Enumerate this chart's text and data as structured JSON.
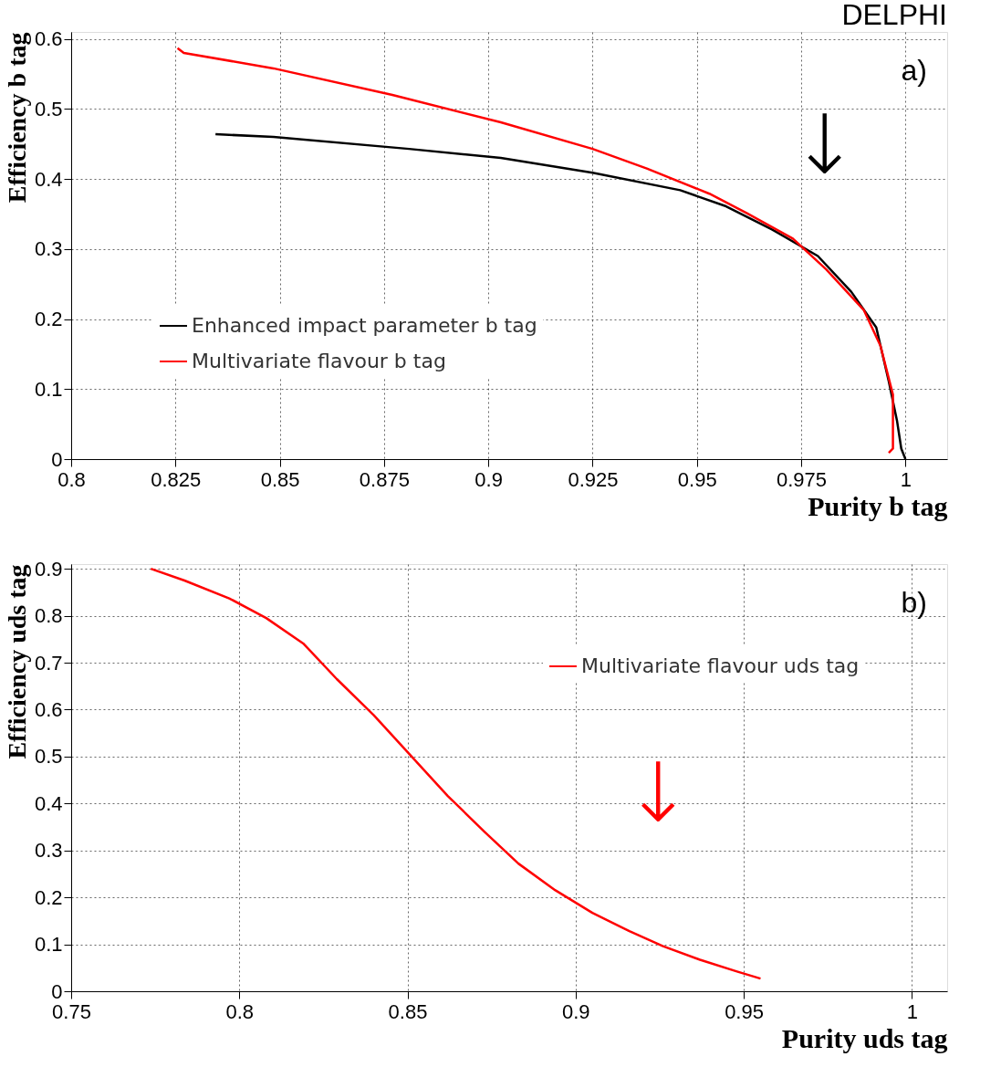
{
  "chart_data": [
    {
      "type": "line",
      "title": "DELPHI",
      "xlabel": "Purity b tag",
      "ylabel": "Efficiency b tag",
      "xlim": [
        0.8,
        1.01
      ],
      "ylim": [
        0,
        0.61
      ],
      "xticks": [
        0.8,
        0.825,
        0.85,
        0.875,
        0.9,
        0.925,
        0.95,
        0.975,
        1
      ],
      "yticks": [
        0,
        0.1,
        0.2,
        0.3,
        0.4,
        0.5,
        0.6
      ],
      "grid": true,
      "legend": "bottom left",
      "line_style": "solid",
      "marker": "none",
      "annotations": [
        "a)",
        "↓"
      ],
      "series": [
        {
          "name": "Enhanced impact parameter b tag",
          "color": "#000000",
          "x": [
            0.8346,
            0.8485,
            0.881,
            0.903,
            0.925,
            0.946,
            0.957,
            0.968,
            0.979,
            0.987,
            0.993,
            0.996,
            0.998,
            0.999,
            1.0
          ],
          "values": [
            0.464,
            0.46,
            0.443,
            0.43,
            0.409,
            0.384,
            0.361,
            0.328,
            0.29,
            0.239,
            0.188,
            0.111,
            0.054,
            0.015,
            0.0
          ]
        },
        {
          "name": "Multivariate flavour b tag",
          "color": "#ff0000",
          "x": [
            0.8255,
            0.827,
            0.8485,
            0.877,
            0.903,
            0.925,
            0.938,
            0.953,
            0.962,
            0.973,
            0.981,
            0.99,
            0.994,
            0.997,
            0.997,
            0.997,
            0.996
          ],
          "values": [
            0.587,
            0.58,
            0.558,
            0.52,
            0.481,
            0.443,
            0.415,
            0.379,
            0.351,
            0.315,
            0.271,
            0.213,
            0.162,
            0.092,
            0.047,
            0.015,
            0.009
          ]
        }
      ]
    },
    {
      "type": "line",
      "xlabel": "Purity uds tag",
      "ylabel": "Efficiency uds tag",
      "xlim": [
        0.75,
        1.0105
      ],
      "ylim": [
        0,
        0.91
      ],
      "xticks": [
        0.75,
        0.8,
        0.85,
        0.9,
        0.95,
        1
      ],
      "yticks": [
        0,
        0.1,
        0.2,
        0.3,
        0.4,
        0.5,
        0.6,
        0.7,
        0.8,
        0.9
      ],
      "grid": true,
      "legend": "top right",
      "line_style": "solid",
      "marker": "none",
      "annotations": [
        "b)",
        "↓"
      ],
      "series": [
        {
          "name": "Multivariate flavour uds tag",
          "color": "#ff0000",
          "x": [
            0.7737,
            0.7837,
            0.797,
            0.808,
            0.819,
            0.829,
            0.84,
            0.851,
            0.862,
            0.873,
            0.883,
            0.894,
            0.905,
            0.916,
            0.926,
            0.937,
            0.948,
            0.955
          ],
          "values": [
            0.9,
            0.875,
            0.837,
            0.795,
            0.741,
            0.665,
            0.588,
            0.502,
            0.416,
            0.339,
            0.272,
            0.215,
            0.167,
            0.128,
            0.096,
            0.067,
            0.042,
            0.027
          ]
        }
      ]
    }
  ]
}
